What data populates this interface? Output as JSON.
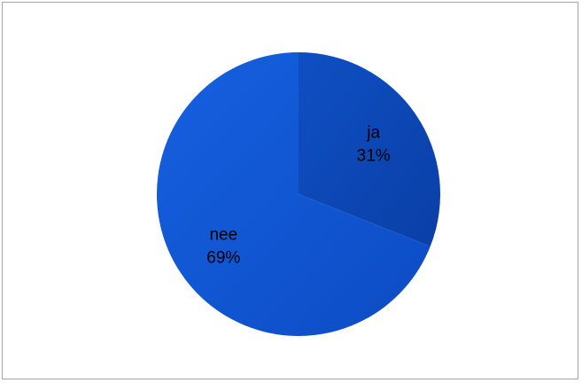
{
  "chart_data": {
    "type": "pie",
    "title": "",
    "slices": [
      {
        "label": "ja",
        "percent_label": "31%",
        "value": 31,
        "color": "#0d47b8"
      },
      {
        "label": "nee",
        "percent_label": "69%",
        "value": 69,
        "color": "#0f55d4"
      }
    ],
    "start_angle_deg": 0,
    "direction": "clockwise",
    "legend": "none",
    "data_labels": "inside"
  }
}
